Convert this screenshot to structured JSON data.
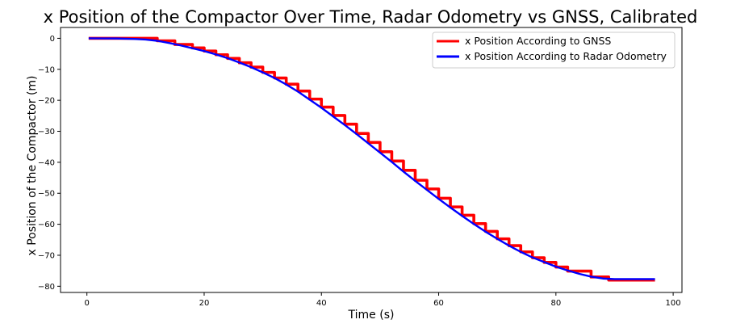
{
  "chart_data": {
    "type": "line",
    "title": "x Position of the Compactor Over Time, Radar Odometry vs GNSS, Calibrated",
    "xlabel": "Time (s)",
    "ylabel": "x Position of the Compactor (m)",
    "xlim": [
      -4.5,
      101.5
    ],
    "ylim": [
      -82,
      3.5
    ],
    "xticks": [
      0,
      20,
      40,
      60,
      80,
      100
    ],
    "xtick_labels": [
      "0",
      "20",
      "40",
      "60",
      "80",
      "100"
    ],
    "yticks": [
      0,
      -10,
      -20,
      -30,
      -40,
      -50,
      -60,
      -70,
      -80
    ],
    "ytick_labels": [
      "0",
      "−10",
      "−20",
      "−30",
      "−40",
      "−50",
      "−60",
      "−70",
      "−80"
    ],
    "grid": false,
    "legend_position": "top-right",
    "series": [
      {
        "name": "x Position According to GNSS",
        "color": "#ff0000",
        "step": true,
        "x": [
          0.3,
          12,
          15,
          18,
          20,
          22,
          24,
          26,
          28,
          30,
          32,
          34,
          36,
          38,
          40,
          42,
          44,
          46,
          48,
          50,
          52,
          54,
          56,
          58,
          60,
          62,
          64,
          66,
          68,
          70,
          72,
          74,
          76,
          78,
          80,
          82,
          86,
          89,
          96.9
        ],
        "y": [
          0,
          -0.8,
          -2.0,
          -3.1,
          -4.1,
          -5.3,
          -6.5,
          -7.9,
          -9.3,
          -11.0,
          -12.8,
          -14.8,
          -17.0,
          -19.6,
          -22.2,
          -24.9,
          -27.7,
          -30.7,
          -33.6,
          -36.6,
          -39.6,
          -42.6,
          -45.8,
          -48.6,
          -51.6,
          -54.4,
          -57.1,
          -59.8,
          -62.3,
          -64.7,
          -66.9,
          -68.9,
          -70.8,
          -72.3,
          -73.8,
          -75.1,
          -77.0,
          -78.0,
          -78.0
        ]
      },
      {
        "name": "x Position According to Radar Odometry",
        "color": "#0000ff",
        "step": false,
        "x": [
          0.3,
          5,
          8,
          10,
          12,
          14,
          16,
          18,
          20,
          22,
          24,
          26,
          28,
          30,
          32,
          34,
          36,
          38,
          40,
          42,
          44,
          46,
          48,
          50,
          52,
          54,
          56,
          58,
          60,
          62,
          64,
          66,
          68,
          70,
          72,
          74,
          76,
          78,
          80,
          82,
          84,
          86,
          88,
          90,
          96.9
        ],
        "y": [
          0,
          -0.05,
          -0.2,
          -0.4,
          -0.8,
          -1.5,
          -2.3,
          -3.2,
          -4.1,
          -5.2,
          -6.4,
          -7.8,
          -9.3,
          -11.0,
          -12.8,
          -14.9,
          -17.2,
          -19.8,
          -22.4,
          -25.2,
          -28.0,
          -30.9,
          -33.9,
          -36.9,
          -39.9,
          -43.0,
          -46.0,
          -48.9,
          -51.8,
          -54.6,
          -57.3,
          -59.9,
          -62.4,
          -64.7,
          -66.9,
          -68.9,
          -70.7,
          -72.2,
          -73.7,
          -74.9,
          -76.0,
          -76.9,
          -77.5,
          -77.7,
          -77.7
        ]
      }
    ]
  }
}
